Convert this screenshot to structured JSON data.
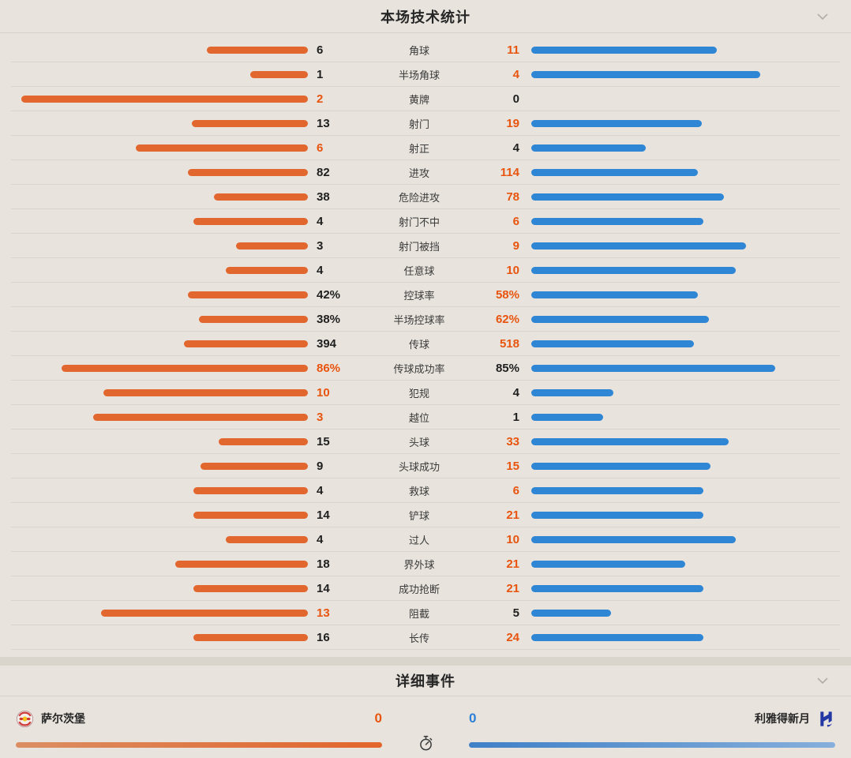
{
  "colors": {
    "background": "#e8e4dd",
    "gap_strip": "#d9d5cd",
    "separator": "#d9d5ce",
    "home_bar": "#e2672e",
    "away_bar": "#2f86d5",
    "highlight_value_text": "#e8540e",
    "away_score_text": "#2b7fd6",
    "dark_text": "#262626"
  },
  "stats_panel": {
    "title": "本场技术统计",
    "rows": [
      {
        "label": "角球",
        "home": "6",
        "away": "11"
      },
      {
        "label": "半场角球",
        "home": "1",
        "away": "4"
      },
      {
        "label": "黄牌",
        "home": "2",
        "away": "0"
      },
      {
        "label": "射门",
        "home": "13",
        "away": "19"
      },
      {
        "label": "射正",
        "home": "6",
        "away": "4"
      },
      {
        "label": "进攻",
        "home": "82",
        "away": "114"
      },
      {
        "label": "危险进攻",
        "home": "38",
        "away": "78"
      },
      {
        "label": "射门不中",
        "home": "4",
        "away": "6"
      },
      {
        "label": "射门被挡",
        "home": "3",
        "away": "9"
      },
      {
        "label": "任意球",
        "home": "4",
        "away": "10"
      },
      {
        "label": "控球率",
        "home": "42%",
        "away": "58%"
      },
      {
        "label": "半场控球率",
        "home": "38%",
        "away": "62%"
      },
      {
        "label": "传球",
        "home": "394",
        "away": "518"
      },
      {
        "label": "传球成功率",
        "home": "86%",
        "away": "85%"
      },
      {
        "label": "犯规",
        "home": "10",
        "away": "4"
      },
      {
        "label": "越位",
        "home": "3",
        "away": "1"
      },
      {
        "label": "头球",
        "home": "15",
        "away": "33"
      },
      {
        "label": "头球成功",
        "home": "9",
        "away": "15"
      },
      {
        "label": "救球",
        "home": "4",
        "away": "6"
      },
      {
        "label": "铲球",
        "home": "14",
        "away": "21"
      },
      {
        "label": "过人",
        "home": "4",
        "away": "10"
      },
      {
        "label": "界外球",
        "home": "18",
        "away": "21"
      },
      {
        "label": "成功抢断",
        "home": "14",
        "away": "21"
      },
      {
        "label": "阻截",
        "home": "13",
        "away": "5"
      },
      {
        "label": "长传",
        "home": "16",
        "away": "24"
      }
    ]
  },
  "events_panel": {
    "title": "详细事件",
    "home_team": {
      "name": "萨尔茨堡",
      "score": "0"
    },
    "away_team": {
      "name": "利雅得新月",
      "score": "0"
    }
  }
}
